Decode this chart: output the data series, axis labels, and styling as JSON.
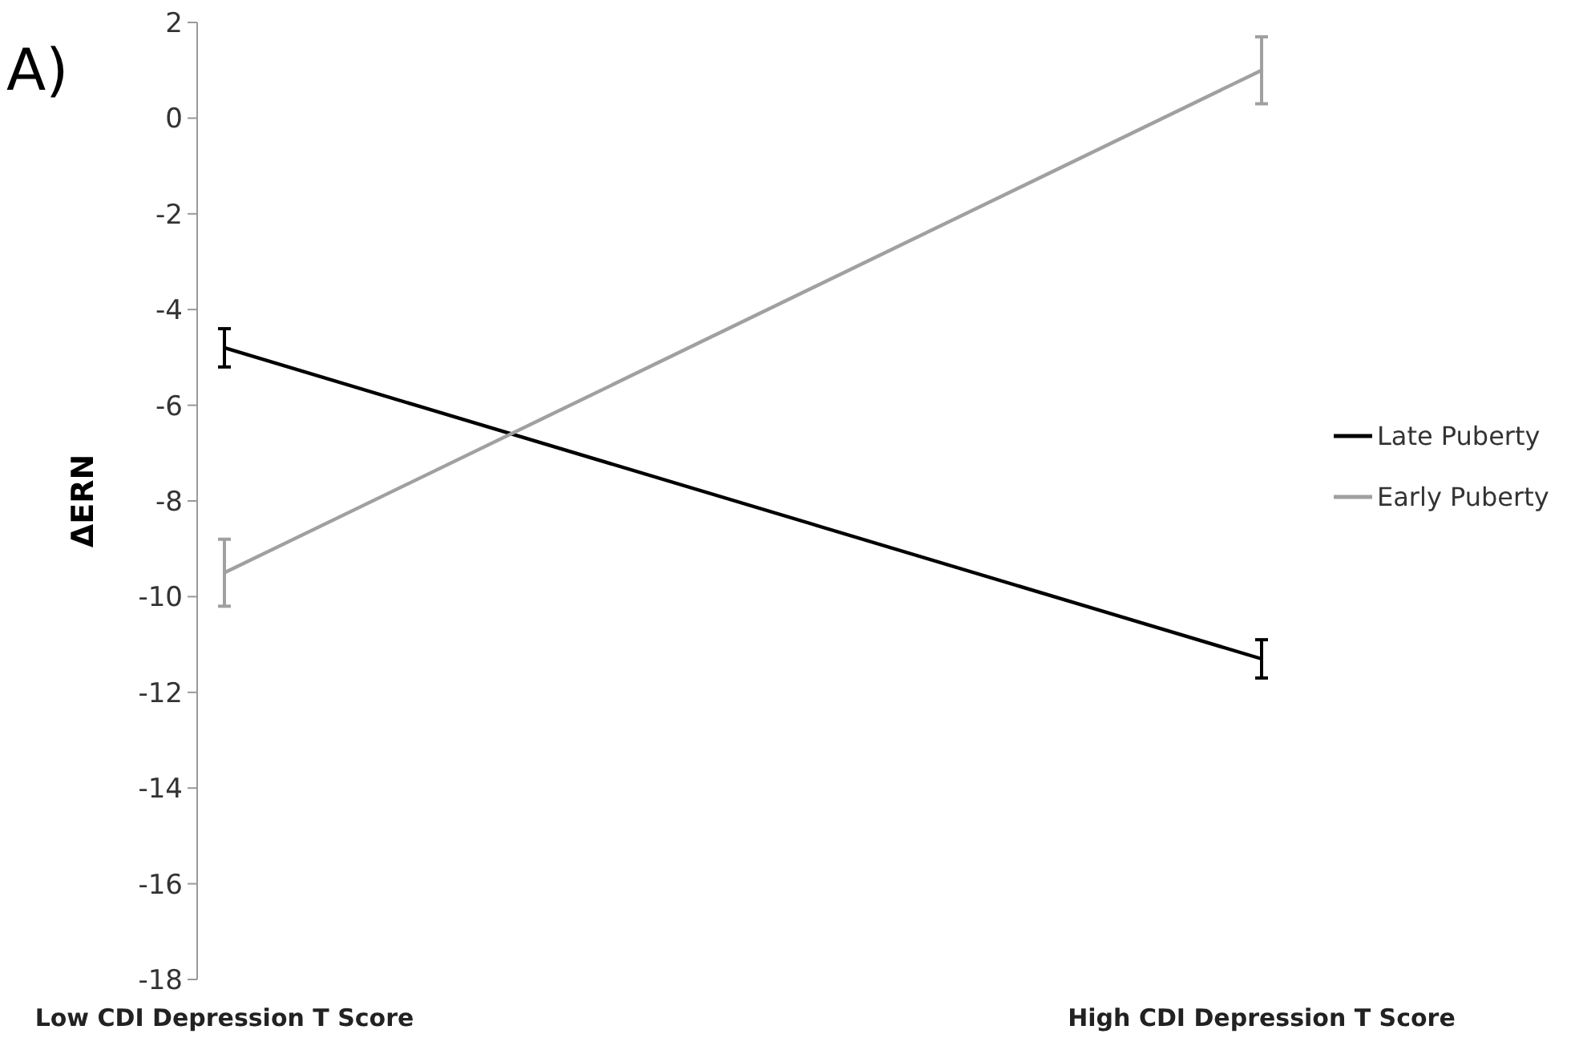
{
  "chart_data": {
    "type": "line",
    "ylabel": "ΔERN",
    "annotations": [
      "A)"
    ],
    "categories": [
      "Low CDI Depression T Score",
      "High CDI Depression T Score"
    ],
    "series": [
      {
        "name": "Late Puberty",
        "color": "#000000",
        "values": [
          -4.8,
          -11.3
        ],
        "errors": [
          0.4,
          0.4
        ]
      },
      {
        "name": "Early Puberty",
        "color": "#a0a0a0",
        "values": [
          -9.5,
          1.0
        ],
        "errors": [
          0.7,
          0.7
        ]
      }
    ],
    "ylim": [
      -18,
      2
    ],
    "yticks": [
      -18,
      -16,
      -14,
      -12,
      -10,
      -8,
      -6,
      -4,
      -2,
      0,
      2
    ],
    "grid": false,
    "legend": "right",
    "marker": "none",
    "line_style": "solid"
  }
}
